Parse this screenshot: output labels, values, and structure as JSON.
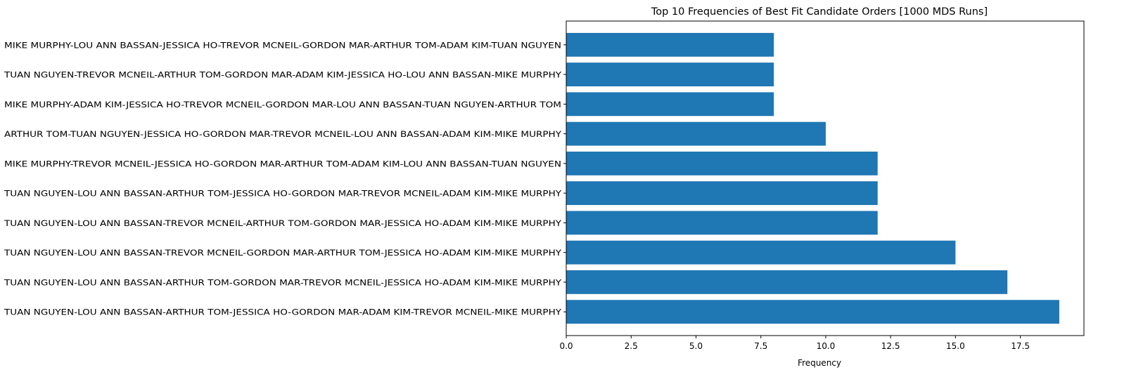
{
  "chart_data": {
    "type": "bar",
    "orientation": "horizontal",
    "title": "Top 10 Frequencies of Best Fit Candidate Orders [1000 MDS Runs]",
    "xlabel": "Frequency",
    "ylabel": "",
    "xlim": [
      0,
      19.95
    ],
    "x_ticks": [
      "0.0",
      "2.5",
      "5.0",
      "7.5",
      "10.0",
      "12.5",
      "15.0",
      "17.5"
    ],
    "grid": false,
    "bar_color": "#1f77b4",
    "categories": [
      "TUAN NGUYEN-LOU ANN BASSAN-ARTHUR TOM-JESSICA HO-GORDON MAR-ADAM KIM-TREVOR MCNEIL-MIKE MURPHY",
      "TUAN NGUYEN-LOU ANN BASSAN-ARTHUR TOM-GORDON MAR-TREVOR MCNEIL-JESSICA HO-ADAM KIM-MIKE MURPHY",
      "TUAN NGUYEN-LOU ANN BASSAN-TREVOR MCNEIL-GORDON MAR-ARTHUR TOM-JESSICA HO-ADAM KIM-MIKE MURPHY",
      "TUAN NGUYEN-LOU ANN BASSAN-TREVOR MCNEIL-ARTHUR TOM-GORDON MAR-JESSICA HO-ADAM KIM-MIKE MURPHY",
      "TUAN NGUYEN-LOU ANN BASSAN-ARTHUR TOM-JESSICA HO-GORDON MAR-TREVOR MCNEIL-ADAM KIM-MIKE MURPHY",
      "MIKE MURPHY-TREVOR MCNEIL-JESSICA HO-GORDON MAR-ARTHUR TOM-ADAM KIM-LOU ANN BASSAN-TUAN NGUYEN",
      "ARTHUR TOM-TUAN NGUYEN-JESSICA HO-GORDON MAR-TREVOR MCNEIL-LOU ANN BASSAN-ADAM KIM-MIKE MURPHY",
      "MIKE MURPHY-ADAM KIM-JESSICA HO-TREVOR MCNEIL-GORDON MAR-LOU ANN BASSAN-TUAN NGUYEN-ARTHUR TOM",
      "TUAN NGUYEN-TREVOR MCNEIL-ARTHUR TOM-GORDON MAR-ADAM KIM-JESSICA HO-LOU ANN BASSAN-MIKE MURPHY",
      "MIKE MURPHY-LOU ANN BASSAN-JESSICA HO-TREVOR MCNEIL-GORDON MAR-ARTHUR TOM-ADAM KIM-TUAN NGUYEN"
    ],
    "values": [
      19,
      17,
      15,
      12,
      12,
      12,
      10,
      8,
      8,
      8
    ]
  }
}
